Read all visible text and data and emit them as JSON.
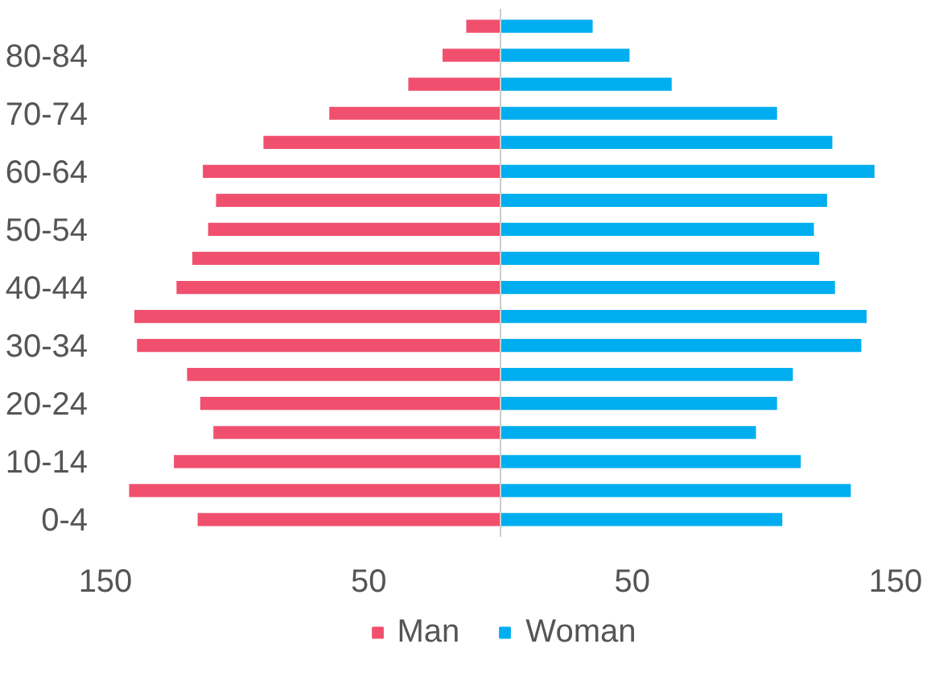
{
  "chart_data": {
    "type": "bar",
    "orientation": "horizontal",
    "categories": [
      null,
      "80-84",
      null,
      "70-74",
      null,
      "60-64",
      null,
      "50-54",
      null,
      "40-44",
      null,
      "30-34",
      null,
      "20-24",
      null,
      "10-14",
      null,
      "0-4"
    ],
    "series": [
      {
        "name": "Man",
        "color": "#f0506e",
        "values": [
          -13,
          -22,
          -35,
          -65,
          -90,
          -113,
          -108,
          -111,
          -117,
          -123,
          -139,
          -138,
          -119,
          -114,
          -109,
          -124,
          -141,
          -115
        ]
      },
      {
        "name": "Woman",
        "color": "#00aeef",
        "values": [
          35,
          49,
          65,
          105,
          126,
          142,
          124,
          119,
          121,
          127,
          139,
          137,
          111,
          105,
          97,
          114,
          133,
          107
        ]
      }
    ],
    "xlim": [
      -150,
      150
    ],
    "stacked": true,
    "xticks": [
      {
        "value": -150,
        "label": "150"
      },
      {
        "value": -50,
        "label": "50"
      },
      {
        "value": 50,
        "label": "50"
      },
      {
        "value": 150,
        "label": "150"
      }
    ],
    "ref_lines": [
      {
        "axis": "x",
        "value": 0,
        "color": "#cccccc"
      }
    ],
    "grid": false,
    "legend": "bottom"
  }
}
